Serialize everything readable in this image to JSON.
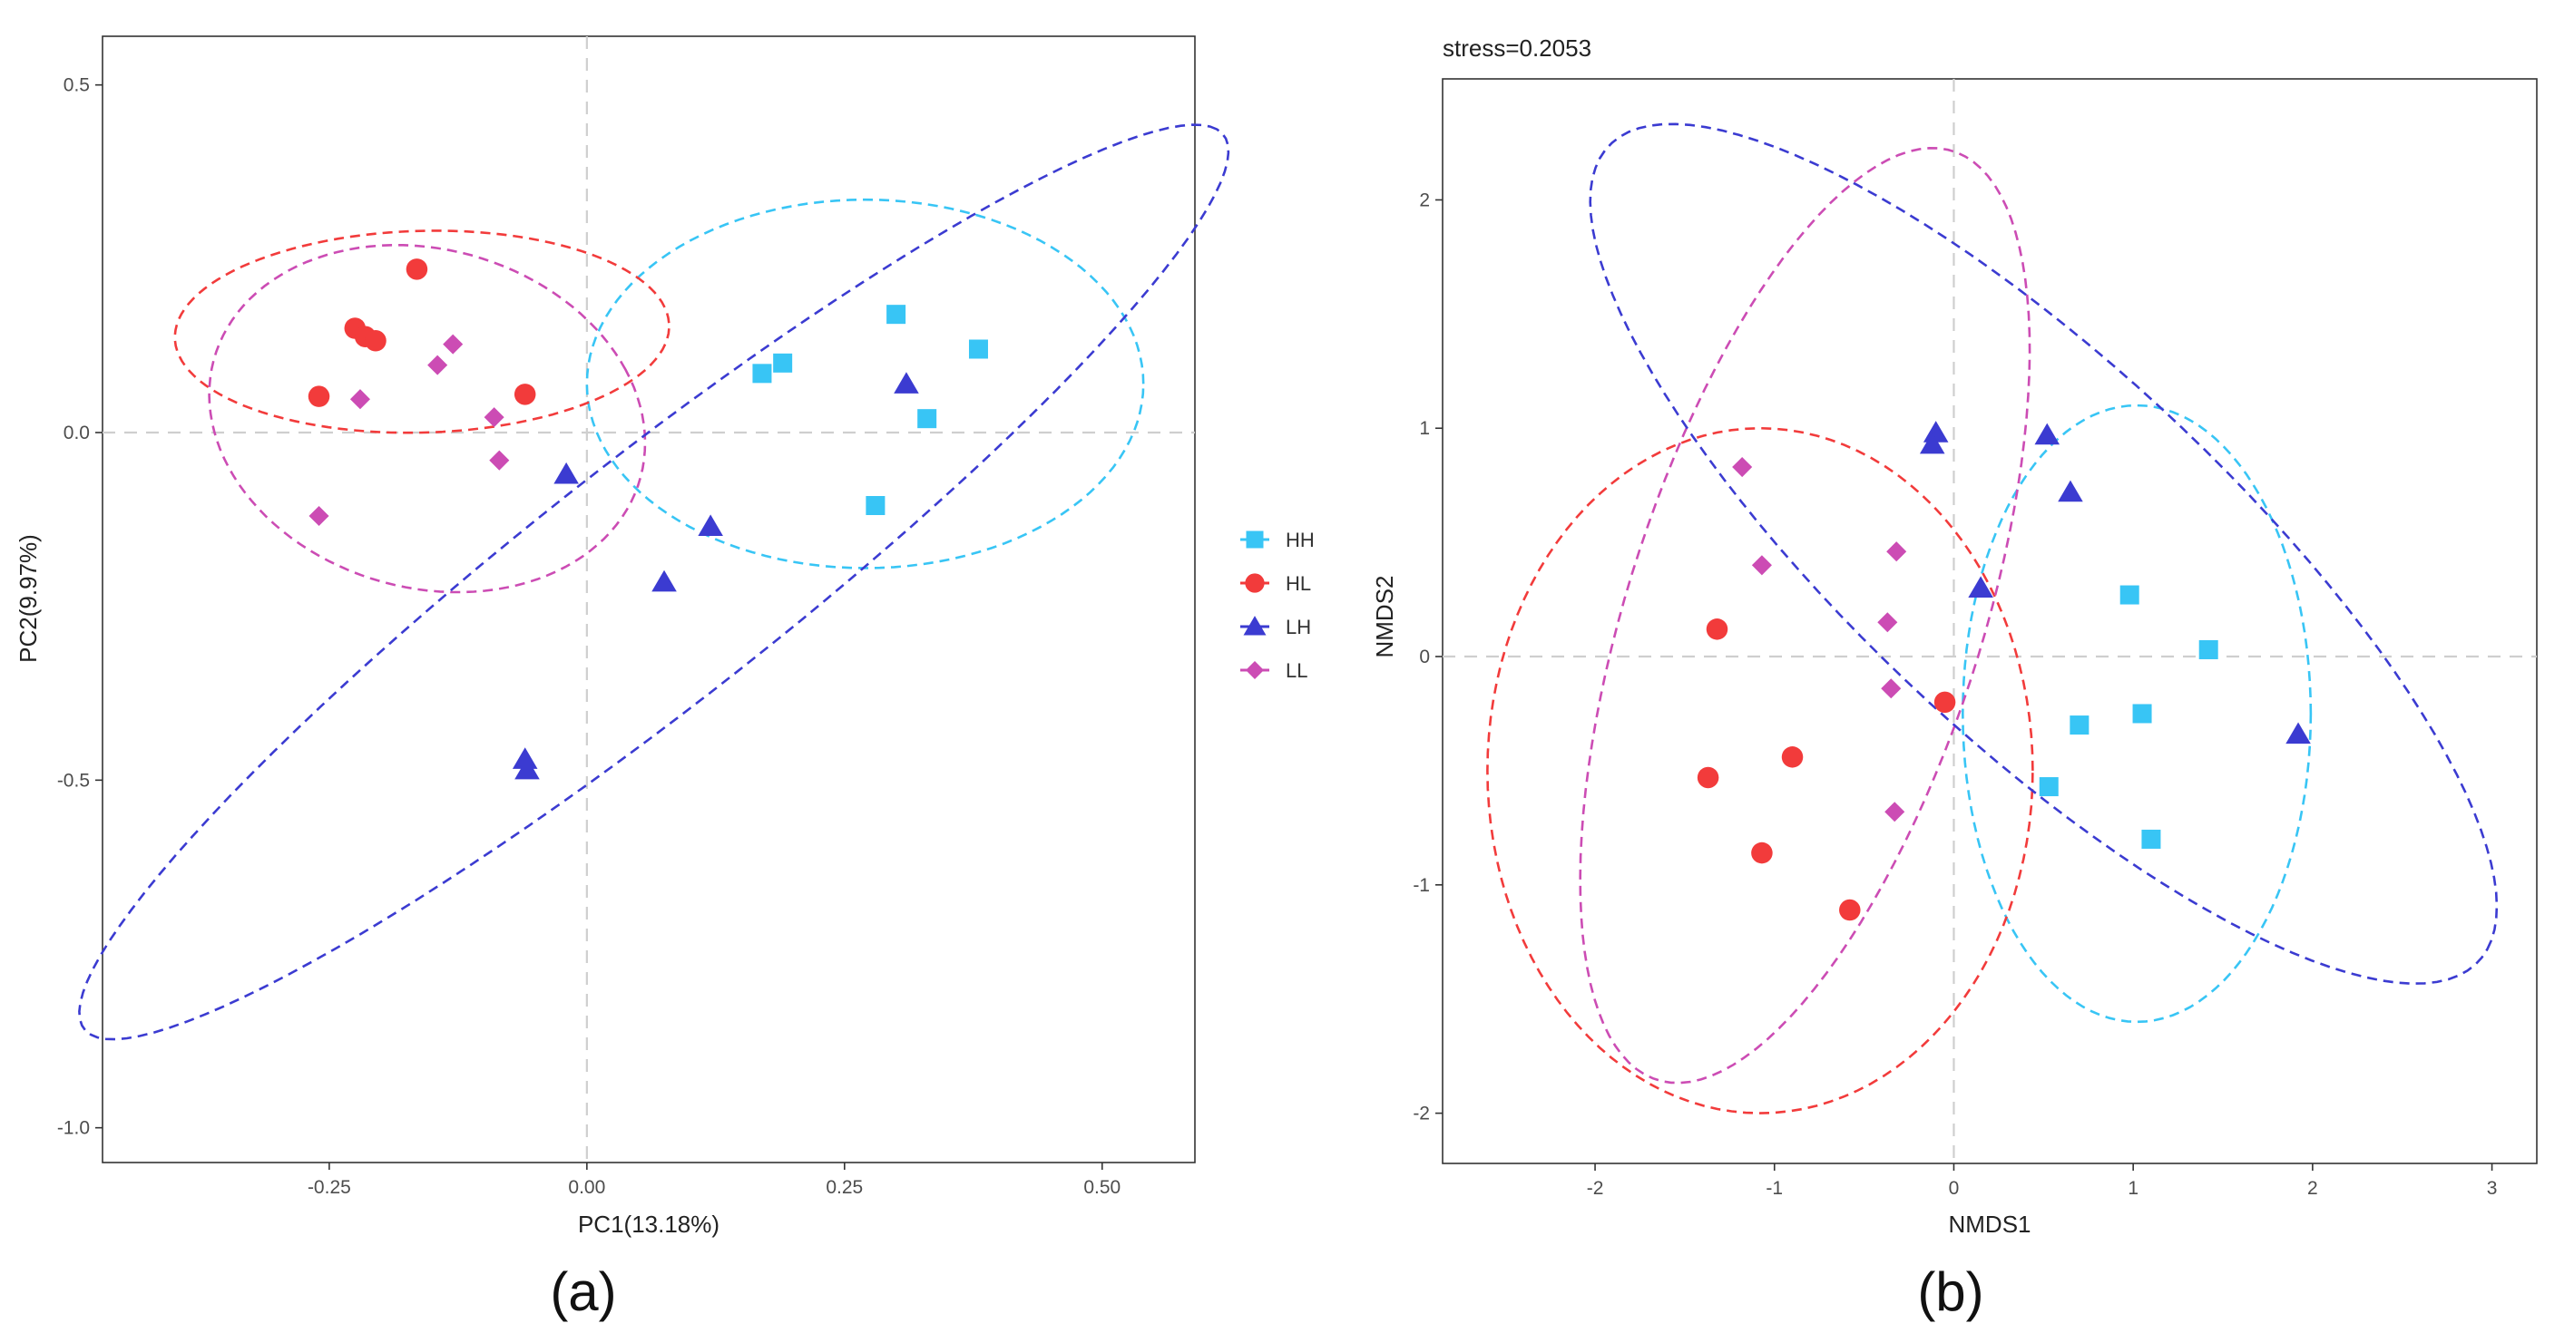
{
  "figure": {
    "caption_a": "(a)",
    "caption_b": "(b)"
  },
  "colors": {
    "HH": "#38c5f5",
    "HL": "#f23b3b",
    "LH": "#3b3bd1",
    "LL": "#cc4cb4"
  },
  "legend": {
    "items": [
      {
        "label": "HH",
        "shape": "square"
      },
      {
        "label": "HL",
        "shape": "circle"
      },
      {
        "label": "LH",
        "shape": "triangle"
      },
      {
        "label": "LL",
        "shape": "diamond"
      }
    ]
  },
  "chart_data": [
    {
      "type": "scatter",
      "title": "(a)",
      "xlabel": "PC1(13.18%)",
      "ylabel": "PC2(9.97%)",
      "xlim": [
        -0.47,
        0.59
      ],
      "ylim": [
        -1.05,
        0.57
      ],
      "xticks": [
        {
          "value": -0.25,
          "label": "-0.25"
        },
        {
          "value": 0.0,
          "label": "0.00"
        },
        {
          "value": 0.25,
          "label": "0.25"
        },
        {
          "value": 0.5,
          "label": "0.50"
        }
      ],
      "yticks": [
        {
          "value": 0.5,
          "label": "0.5"
        },
        {
          "value": 0.0,
          "label": "0.0"
        },
        {
          "value": -0.5,
          "label": "-0.5"
        },
        {
          "value": -1.0,
          "label": "-1.0"
        }
      ],
      "reference_lines": {
        "x": 0,
        "y": 0
      },
      "series": [
        {
          "name": "HH",
          "points": [
            [
              0.17,
              0.085
            ],
            [
              0.19,
              0.1
            ],
            [
              0.3,
              0.17
            ],
            [
              0.38,
              0.12
            ],
            [
              0.33,
              0.02
            ],
            [
              0.28,
              -0.105
            ]
          ]
        },
        {
          "name": "HL",
          "points": [
            [
              -0.165,
              0.235
            ],
            [
              -0.225,
              0.15
            ],
            [
              -0.215,
              0.138
            ],
            [
              -0.205,
              0.132
            ],
            [
              -0.26,
              0.052
            ],
            [
              -0.06,
              0.055
            ]
          ]
        },
        {
          "name": "LH",
          "points": [
            [
              0.31,
              0.07
            ],
            [
              -0.02,
              -0.06
            ],
            [
              0.12,
              -0.135
            ],
            [
              0.075,
              -0.215
            ],
            [
              -0.06,
              -0.47
            ],
            [
              -0.058,
              -0.485
            ]
          ]
        },
        {
          "name": "LL",
          "points": [
            [
              -0.13,
              0.127
            ],
            [
              -0.145,
              0.097
            ],
            [
              -0.22,
              0.048
            ],
            [
              -0.09,
              0.022
            ],
            [
              -0.085,
              -0.04
            ],
            [
              -0.26,
              -0.12
            ]
          ]
        }
      ],
      "ellipses": [
        {
          "group": "HH",
          "center": [
            0.27,
            0.07
          ],
          "rx": 0.27,
          "ry": 0.265,
          "angle_deg": 0
        },
        {
          "group": "HL",
          "center": [
            -0.16,
            0.145
          ],
          "rx": 0.24,
          "ry": 0.145,
          "angle_deg": 3
        },
        {
          "group": "LL",
          "center": [
            -0.155,
            0.02
          ],
          "rx": 0.205,
          "ry": 0.255,
          "angle_deg": 20
        },
        {
          "group": "LH",
          "center": [
            0.065,
            -0.215
          ],
          "rx": 0.85,
          "ry": 0.145,
          "angle_deg": 50
        }
      ]
    },
    {
      "type": "scatter",
      "title": "(b)",
      "annotation": "stress=0.2053",
      "xlabel": "NMDS1",
      "ylabel": "NMDS2",
      "xlim": [
        -2.85,
        3.25
      ],
      "ylim": [
        -2.22,
        2.53
      ],
      "xticks": [
        {
          "value": -2,
          "label": "-2"
        },
        {
          "value": -1,
          "label": "-1"
        },
        {
          "value": 0,
          "label": "0"
        },
        {
          "value": 1,
          "label": "1"
        },
        {
          "value": 2,
          "label": "2"
        },
        {
          "value": 3,
          "label": "3"
        }
      ],
      "yticks": [
        {
          "value": 2,
          "label": "2"
        },
        {
          "value": 1,
          "label": "1"
        },
        {
          "value": 0,
          "label": "0"
        },
        {
          "value": -1,
          "label": "-1"
        },
        {
          "value": -2,
          "label": "-2"
        }
      ],
      "reference_lines": {
        "x": 0,
        "y": 0
      },
      "series": [
        {
          "name": "HH",
          "points": [
            [
              0.98,
              0.27
            ],
            [
              1.42,
              0.03
            ],
            [
              0.7,
              -0.3
            ],
            [
              1.05,
              -0.25
            ],
            [
              0.53,
              -0.57
            ],
            [
              1.1,
              -0.8
            ]
          ]
        },
        {
          "name": "HL",
          "points": [
            [
              -1.32,
              0.12
            ],
            [
              -0.05,
              -0.2
            ],
            [
              -0.9,
              -0.44
            ],
            [
              -1.37,
              -0.53
            ],
            [
              -1.07,
              -0.86
            ],
            [
              -0.58,
              -1.11
            ]
          ]
        },
        {
          "name": "LH",
          "points": [
            [
              -0.1,
              0.98
            ],
            [
              -0.12,
              0.93
            ],
            [
              0.52,
              0.97
            ],
            [
              0.65,
              0.72
            ],
            [
              0.15,
              0.3
            ],
            [
              1.92,
              -0.34
            ]
          ]
        },
        {
          "name": "LL",
          "points": [
            [
              -1.18,
              0.83
            ],
            [
              -1.07,
              0.4
            ],
            [
              -0.32,
              0.46
            ],
            [
              -0.37,
              0.15
            ],
            [
              -0.35,
              -0.14
            ],
            [
              -0.33,
              -0.68
            ]
          ]
        }
      ],
      "ellipses": [
        {
          "group": "HH",
          "center": [
            1.02,
            -0.25
          ],
          "rx": 0.97,
          "ry": 1.35,
          "angle_deg": 0
        },
        {
          "group": "HL",
          "center": [
            -1.08,
            -0.5
          ],
          "rx": 1.52,
          "ry": 1.5,
          "angle_deg": 0
        },
        {
          "group": "LL",
          "center": [
            -0.83,
            0.18
          ],
          "rx": 0.96,
          "ry": 2.2,
          "angle_deg": -24
        },
        {
          "group": "LH",
          "center": [
            0.5,
            0.45
          ],
          "rx": 3.02,
          "ry": 0.9,
          "angle_deg": -35
        }
      ]
    }
  ]
}
